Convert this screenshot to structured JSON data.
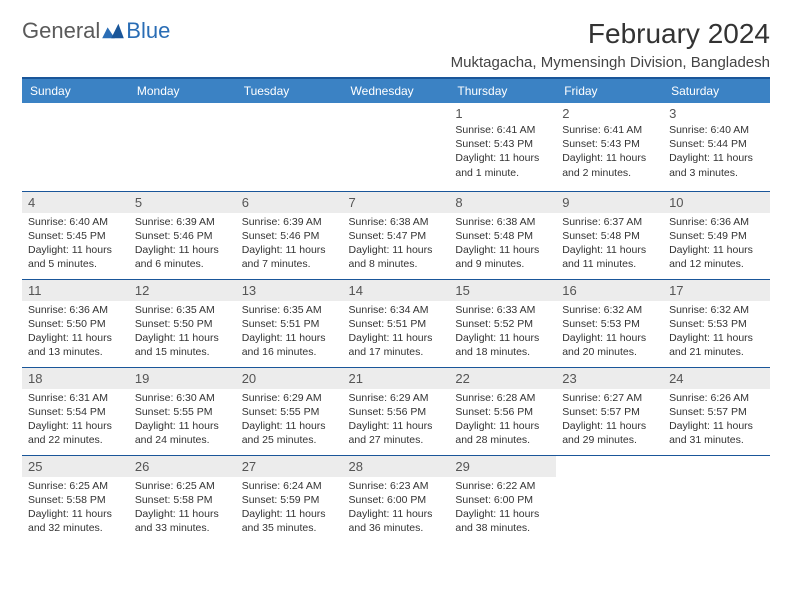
{
  "brand": {
    "part1": "General",
    "part2": "Blue",
    "color_general": "#5a5a5a",
    "color_blue": "#2a6db5"
  },
  "title": "February 2024",
  "location": "Muktagacha, Mymensingh Division, Bangladesh",
  "colors": {
    "header_bg": "#3b82c4",
    "header_text": "#ffffff",
    "rule": "#1a5699",
    "shade": "#ececec",
    "body_text": "#333333"
  },
  "day_headers": [
    "Sunday",
    "Monday",
    "Tuesday",
    "Wednesday",
    "Thursday",
    "Friday",
    "Saturday"
  ],
  "weeks": [
    {
      "shaded": false,
      "cells": [
        {
          "blank": true
        },
        {
          "blank": true
        },
        {
          "blank": true
        },
        {
          "blank": true
        },
        {
          "num": "1",
          "sunrise": "Sunrise: 6:41 AM",
          "sunset": "Sunset: 5:43 PM",
          "daylight1": "Daylight: 11 hours",
          "daylight2": "and 1 minute."
        },
        {
          "num": "2",
          "sunrise": "Sunrise: 6:41 AM",
          "sunset": "Sunset: 5:43 PM",
          "daylight1": "Daylight: 11 hours",
          "daylight2": "and 2 minutes."
        },
        {
          "num": "3",
          "sunrise": "Sunrise: 6:40 AM",
          "sunset": "Sunset: 5:44 PM",
          "daylight1": "Daylight: 11 hours",
          "daylight2": "and 3 minutes."
        }
      ]
    },
    {
      "shaded": true,
      "cells": [
        {
          "num": "4",
          "sunrise": "Sunrise: 6:40 AM",
          "sunset": "Sunset: 5:45 PM",
          "daylight1": "Daylight: 11 hours",
          "daylight2": "and 5 minutes."
        },
        {
          "num": "5",
          "sunrise": "Sunrise: 6:39 AM",
          "sunset": "Sunset: 5:46 PM",
          "daylight1": "Daylight: 11 hours",
          "daylight2": "and 6 minutes."
        },
        {
          "num": "6",
          "sunrise": "Sunrise: 6:39 AM",
          "sunset": "Sunset: 5:46 PM",
          "daylight1": "Daylight: 11 hours",
          "daylight2": "and 7 minutes."
        },
        {
          "num": "7",
          "sunrise": "Sunrise: 6:38 AM",
          "sunset": "Sunset: 5:47 PM",
          "daylight1": "Daylight: 11 hours",
          "daylight2": "and 8 minutes."
        },
        {
          "num": "8",
          "sunrise": "Sunrise: 6:38 AM",
          "sunset": "Sunset: 5:48 PM",
          "daylight1": "Daylight: 11 hours",
          "daylight2": "and 9 minutes."
        },
        {
          "num": "9",
          "sunrise": "Sunrise: 6:37 AM",
          "sunset": "Sunset: 5:48 PM",
          "daylight1": "Daylight: 11 hours",
          "daylight2": "and 11 minutes."
        },
        {
          "num": "10",
          "sunrise": "Sunrise: 6:36 AM",
          "sunset": "Sunset: 5:49 PM",
          "daylight1": "Daylight: 11 hours",
          "daylight2": "and 12 minutes."
        }
      ]
    },
    {
      "shaded": false,
      "cells": [
        {
          "num": "11",
          "sunrise": "Sunrise: 6:36 AM",
          "sunset": "Sunset: 5:50 PM",
          "daylight1": "Daylight: 11 hours",
          "daylight2": "and 13 minutes."
        },
        {
          "num": "12",
          "sunrise": "Sunrise: 6:35 AM",
          "sunset": "Sunset: 5:50 PM",
          "daylight1": "Daylight: 11 hours",
          "daylight2": "and 15 minutes."
        },
        {
          "num": "13",
          "sunrise": "Sunrise: 6:35 AM",
          "sunset": "Sunset: 5:51 PM",
          "daylight1": "Daylight: 11 hours",
          "daylight2": "and 16 minutes."
        },
        {
          "num": "14",
          "sunrise": "Sunrise: 6:34 AM",
          "sunset": "Sunset: 5:51 PM",
          "daylight1": "Daylight: 11 hours",
          "daylight2": "and 17 minutes."
        },
        {
          "num": "15",
          "sunrise": "Sunrise: 6:33 AM",
          "sunset": "Sunset: 5:52 PM",
          "daylight1": "Daylight: 11 hours",
          "daylight2": "and 18 minutes."
        },
        {
          "num": "16",
          "sunrise": "Sunrise: 6:32 AM",
          "sunset": "Sunset: 5:53 PM",
          "daylight1": "Daylight: 11 hours",
          "daylight2": "and 20 minutes."
        },
        {
          "num": "17",
          "sunrise": "Sunrise: 6:32 AM",
          "sunset": "Sunset: 5:53 PM",
          "daylight1": "Daylight: 11 hours",
          "daylight2": "and 21 minutes."
        }
      ]
    },
    {
      "shaded": true,
      "cells": [
        {
          "num": "18",
          "sunrise": "Sunrise: 6:31 AM",
          "sunset": "Sunset: 5:54 PM",
          "daylight1": "Daylight: 11 hours",
          "daylight2": "and 22 minutes."
        },
        {
          "num": "19",
          "sunrise": "Sunrise: 6:30 AM",
          "sunset": "Sunset: 5:55 PM",
          "daylight1": "Daylight: 11 hours",
          "daylight2": "and 24 minutes."
        },
        {
          "num": "20",
          "sunrise": "Sunrise: 6:29 AM",
          "sunset": "Sunset: 5:55 PM",
          "daylight1": "Daylight: 11 hours",
          "daylight2": "and 25 minutes."
        },
        {
          "num": "21",
          "sunrise": "Sunrise: 6:29 AM",
          "sunset": "Sunset: 5:56 PM",
          "daylight1": "Daylight: 11 hours",
          "daylight2": "and 27 minutes."
        },
        {
          "num": "22",
          "sunrise": "Sunrise: 6:28 AM",
          "sunset": "Sunset: 5:56 PM",
          "daylight1": "Daylight: 11 hours",
          "daylight2": "and 28 minutes."
        },
        {
          "num": "23",
          "sunrise": "Sunrise: 6:27 AM",
          "sunset": "Sunset: 5:57 PM",
          "daylight1": "Daylight: 11 hours",
          "daylight2": "and 29 minutes."
        },
        {
          "num": "24",
          "sunrise": "Sunrise: 6:26 AM",
          "sunset": "Sunset: 5:57 PM",
          "daylight1": "Daylight: 11 hours",
          "daylight2": "and 31 minutes."
        }
      ]
    },
    {
      "shaded": false,
      "cells": [
        {
          "num": "25",
          "sunrise": "Sunrise: 6:25 AM",
          "sunset": "Sunset: 5:58 PM",
          "daylight1": "Daylight: 11 hours",
          "daylight2": "and 32 minutes."
        },
        {
          "num": "26",
          "sunrise": "Sunrise: 6:25 AM",
          "sunset": "Sunset: 5:58 PM",
          "daylight1": "Daylight: 11 hours",
          "daylight2": "and 33 minutes."
        },
        {
          "num": "27",
          "sunrise": "Sunrise: 6:24 AM",
          "sunset": "Sunset: 5:59 PM",
          "daylight1": "Daylight: 11 hours",
          "daylight2": "and 35 minutes."
        },
        {
          "num": "28",
          "sunrise": "Sunrise: 6:23 AM",
          "sunset": "Sunset: 6:00 PM",
          "daylight1": "Daylight: 11 hours",
          "daylight2": "and 36 minutes."
        },
        {
          "num": "29",
          "sunrise": "Sunrise: 6:22 AM",
          "sunset": "Sunset: 6:00 PM",
          "daylight1": "Daylight: 11 hours",
          "daylight2": "and 38 minutes."
        },
        {
          "blank": true
        },
        {
          "blank": true
        }
      ]
    }
  ]
}
